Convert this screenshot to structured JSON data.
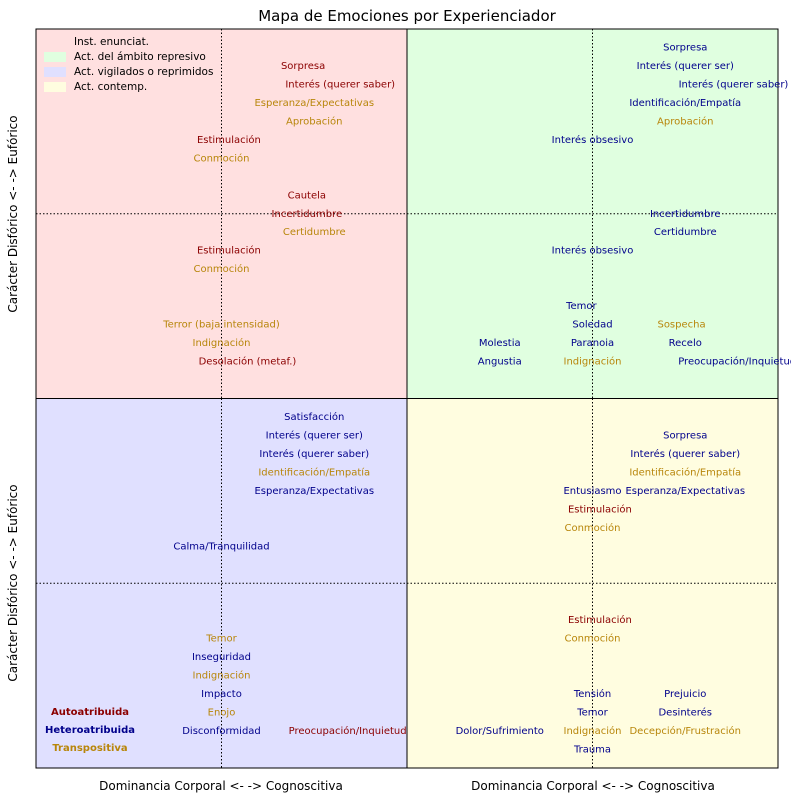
{
  "chart_data": {
    "type": "scatter",
    "title": "Mapa de Emociones por Experienciador",
    "ylabel": "Carácter Disfórico <- -> Eufórico",
    "xlabel": "Dominancia Corporal <- -> Cognoscitiva",
    "colors": {
      "Autoatribuida": "#8b0000",
      "Heteroatribuida": "#00008b",
      "Transpositiva": "#b8860b"
    },
    "legend": {
      "placement": "top-left",
      "entries": [
        {
          "label": "Inst. enunciat.",
          "color": "#ffe0e0"
        },
        {
          "label": "Act. del ámbito represivo",
          "color": "#e0ffe0"
        },
        {
          "label": "Act. vigilados o reprimidos",
          "color": "#e0e0ff"
        },
        {
          "label": "Act. contemp.",
          "color": "#fffde0"
        }
      ]
    },
    "attribution_key": {
      "placement": "bottom-left",
      "entries": [
        {
          "label": "Autoatribuida",
          "color": "#8b0000"
        },
        {
          "label": "Heteroatribuida",
          "color": "#00008b"
        },
        {
          "label": "Transpositiva",
          "color": "#b8860b"
        }
      ]
    },
    "panels": [
      {
        "name": "Inst. enunciat.",
        "background": "#ffe0e0",
        "xlim": [
          0,
          1
        ],
        "ylim": [
          0,
          1
        ],
        "points": [
          {
            "label": "Sorpresa",
            "x": 0.72,
            "y": 0.9,
            "attribution": "Autoatribuida"
          },
          {
            "label": "Interés (querer saber)",
            "x": 0.82,
            "y": 0.85,
            "attribution": "Autoatribuida"
          },
          {
            "label": "Esperanza/Expectativas",
            "x": 0.75,
            "y": 0.8,
            "attribution": "Transpositiva"
          },
          {
            "label": "Aprobación",
            "x": 0.75,
            "y": 0.75,
            "attribution": "Transpositiva"
          },
          {
            "label": "Estimulación",
            "x": 0.52,
            "y": 0.7,
            "attribution": "Autoatribuida"
          },
          {
            "label": "Conmoción",
            "x": 0.5,
            "y": 0.65,
            "attribution": "Transpositiva"
          },
          {
            "label": "Cautela",
            "x": 0.73,
            "y": 0.55,
            "attribution": "Autoatribuida"
          },
          {
            "label": "Incertidumbre",
            "x": 0.73,
            "y": 0.5,
            "attribution": "Autoatribuida"
          },
          {
            "label": "Certidumbre",
            "x": 0.75,
            "y": 0.45,
            "attribution": "Transpositiva"
          },
          {
            "label": "Estimulación",
            "x": 0.52,
            "y": 0.4,
            "attribution": "Autoatribuida"
          },
          {
            "label": "Conmoción",
            "x": 0.5,
            "y": 0.35,
            "attribution": "Transpositiva"
          },
          {
            "label": "Terror (baja intensidad)",
            "x": 0.5,
            "y": 0.2,
            "attribution": "Transpositiva"
          },
          {
            "label": "Indignación",
            "x": 0.5,
            "y": 0.15,
            "attribution": "Transpositiva"
          },
          {
            "label": "Desolación (metaf.)",
            "x": 0.57,
            "y": 0.1,
            "attribution": "Autoatribuida"
          }
        ]
      },
      {
        "name": "Act. del ámbito represivo",
        "background": "#e0ffe0",
        "xlim": [
          0,
          1
        ],
        "ylim": [
          0,
          1
        ],
        "points": [
          {
            "label": "Sorpresa",
            "x": 0.75,
            "y": 0.95,
            "attribution": "Heteroatribuida"
          },
          {
            "label": "Interés (querer ser)",
            "x": 0.75,
            "y": 0.9,
            "attribution": "Heteroatribuida"
          },
          {
            "label": "Interés (querer saber)",
            "x": 0.88,
            "y": 0.85,
            "attribution": "Heteroatribuida"
          },
          {
            "label": "Identificación/Empatía",
            "x": 0.75,
            "y": 0.8,
            "attribution": "Heteroatribuida"
          },
          {
            "label": "Aprobación",
            "x": 0.75,
            "y": 0.75,
            "attribution": "Transpositiva"
          },
          {
            "label": "Interés obsesivo",
            "x": 0.5,
            "y": 0.7,
            "attribution": "Heteroatribuida"
          },
          {
            "label": "Incertidumbre",
            "x": 0.75,
            "y": 0.5,
            "attribution": "Heteroatribuida"
          },
          {
            "label": "Certidumbre",
            "x": 0.75,
            "y": 0.45,
            "attribution": "Heteroatribuida"
          },
          {
            "label": "Interés obsesivo",
            "x": 0.5,
            "y": 0.4,
            "attribution": "Heteroatribuida"
          },
          {
            "label": "Temor",
            "x": 0.47,
            "y": 0.25,
            "attribution": "Heteroatribuida"
          },
          {
            "label": "Soledad",
            "x": 0.5,
            "y": 0.2,
            "attribution": "Heteroatribuida"
          },
          {
            "label": "Sospecha",
            "x": 0.74,
            "y": 0.2,
            "attribution": "Transpositiva"
          },
          {
            "label": "Molestia",
            "x": 0.25,
            "y": 0.15,
            "attribution": "Heteroatribuida"
          },
          {
            "label": "Paranoia",
            "x": 0.5,
            "y": 0.15,
            "attribution": "Heteroatribuida"
          },
          {
            "label": "Recelo",
            "x": 0.75,
            "y": 0.15,
            "attribution": "Heteroatribuida"
          },
          {
            "label": "Angustia",
            "x": 0.25,
            "y": 0.1,
            "attribution": "Heteroatribuida"
          },
          {
            "label": "Indignación",
            "x": 0.5,
            "y": 0.1,
            "attribution": "Transpositiva"
          },
          {
            "label": "Preocupación/Inquietud",
            "x": 0.89,
            "y": 0.1,
            "attribution": "Heteroatribuida"
          }
        ]
      },
      {
        "name": "Act. vigilados o reprimidos",
        "background": "#e0e0ff",
        "xlim": [
          0,
          1
        ],
        "ylim": [
          0,
          1
        ],
        "points": [
          {
            "label": "Satisfacción",
            "x": 0.75,
            "y": 0.95,
            "attribution": "Heteroatribuida"
          },
          {
            "label": "Interés (querer ser)",
            "x": 0.75,
            "y": 0.9,
            "attribution": "Heteroatribuida"
          },
          {
            "label": "Interés (querer saber)",
            "x": 0.75,
            "y": 0.85,
            "attribution": "Heteroatribuida"
          },
          {
            "label": "Identificación/Empatía",
            "x": 0.75,
            "y": 0.8,
            "attribution": "Transpositiva"
          },
          {
            "label": "Esperanza/Expectativas",
            "x": 0.75,
            "y": 0.75,
            "attribution": "Heteroatribuida"
          },
          {
            "label": "Calma/Tranquilidad",
            "x": 0.5,
            "y": 0.6,
            "attribution": "Heteroatribuida"
          },
          {
            "label": "Temor",
            "x": 0.5,
            "y": 0.35,
            "attribution": "Transpositiva"
          },
          {
            "label": "Inseguridad",
            "x": 0.5,
            "y": 0.3,
            "attribution": "Heteroatribuida"
          },
          {
            "label": "Indignación",
            "x": 0.5,
            "y": 0.25,
            "attribution": "Transpositiva"
          },
          {
            "label": "Impacto",
            "x": 0.5,
            "y": 0.2,
            "attribution": "Heteroatribuida"
          },
          {
            "label": "Enojo",
            "x": 0.5,
            "y": 0.15,
            "attribution": "Transpositiva"
          },
          {
            "label": "Disconformidad",
            "x": 0.5,
            "y": 0.1,
            "attribution": "Heteroatribuida"
          },
          {
            "label": "Preocupación/Inquietud",
            "x": 0.84,
            "y": 0.1,
            "attribution": "Autoatribuida"
          }
        ]
      },
      {
        "name": "Act. contemp.",
        "background": "#fffde0",
        "xlim": [
          0,
          1
        ],
        "ylim": [
          0,
          1
        ],
        "points": [
          {
            "label": "Sorpresa",
            "x": 0.75,
            "y": 0.9,
            "attribution": "Heteroatribuida"
          },
          {
            "label": "Interés (querer saber)",
            "x": 0.75,
            "y": 0.85,
            "attribution": "Heteroatribuida"
          },
          {
            "label": "Identificación/Empatía",
            "x": 0.75,
            "y": 0.8,
            "attribution": "Transpositiva"
          },
          {
            "label": "Entusiasmo",
            "x": 0.5,
            "y": 0.75,
            "attribution": "Heteroatribuida"
          },
          {
            "label": "Esperanza/Expectativas",
            "x": 0.75,
            "y": 0.75,
            "attribution": "Heteroatribuida"
          },
          {
            "label": "Estimulación",
            "x": 0.52,
            "y": 0.7,
            "attribution": "Autoatribuida"
          },
          {
            "label": "Conmoción",
            "x": 0.5,
            "y": 0.65,
            "attribution": "Transpositiva"
          },
          {
            "label": "Estimulación",
            "x": 0.52,
            "y": 0.4,
            "attribution": "Autoatribuida"
          },
          {
            "label": "Conmoción",
            "x": 0.5,
            "y": 0.35,
            "attribution": "Transpositiva"
          },
          {
            "label": "Tensión",
            "x": 0.5,
            "y": 0.2,
            "attribution": "Heteroatribuida"
          },
          {
            "label": "Prejuicio",
            "x": 0.75,
            "y": 0.2,
            "attribution": "Heteroatribuida"
          },
          {
            "label": "Temor",
            "x": 0.5,
            "y": 0.15,
            "attribution": "Heteroatribuida"
          },
          {
            "label": "Desinterés",
            "x": 0.75,
            "y": 0.15,
            "attribution": "Heteroatribuida"
          },
          {
            "label": "Dolor/Sufrimiento",
            "x": 0.25,
            "y": 0.1,
            "attribution": "Heteroatribuida"
          },
          {
            "label": "Indignación",
            "x": 0.5,
            "y": 0.1,
            "attribution": "Transpositiva"
          },
          {
            "label": "Decepción/Frustración",
            "x": 0.75,
            "y": 0.1,
            "attribution": "Transpositiva"
          },
          {
            "label": "Trauma",
            "x": 0.5,
            "y": 0.05,
            "attribution": "Heteroatribuida"
          }
        ]
      }
    ]
  }
}
